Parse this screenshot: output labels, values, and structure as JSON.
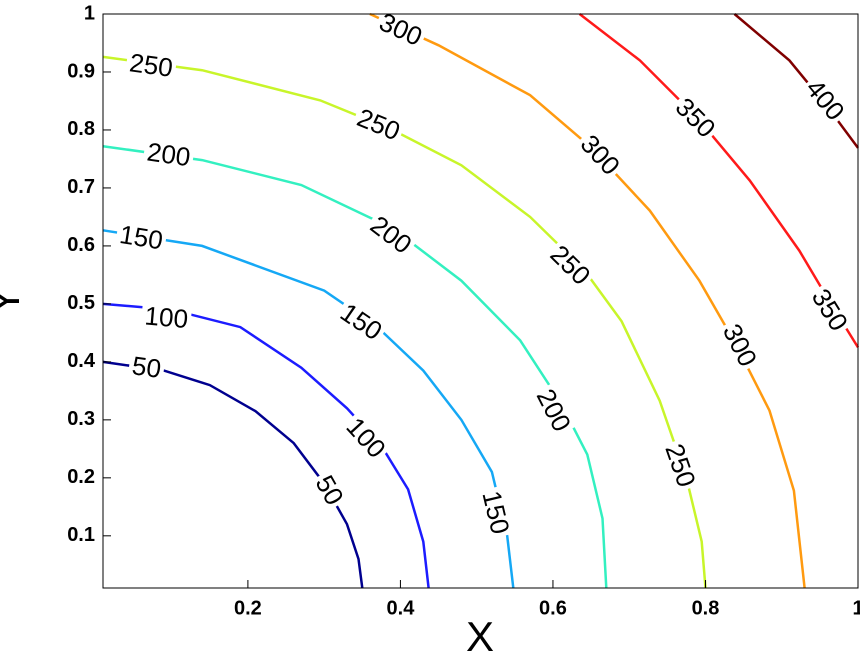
{
  "chart_data": {
    "type": "contour",
    "xlabel": "X",
    "ylabel": "Y",
    "xlim": [
      0.01,
      1
    ],
    "ylim": [
      0.01,
      1
    ],
    "xticks": [
      0.2,
      0.4,
      0.6,
      0.8,
      1
    ],
    "yticks": [
      0.1,
      0.2,
      0.3,
      0.4,
      0.5,
      0.6,
      0.7,
      0.8,
      0.9,
      1
    ],
    "series": [
      {
        "level": 50,
        "color": "#00008f",
        "x": [
          0.01,
          0.09,
          0.15,
          0.21,
          0.26,
          0.3,
          0.33,
          0.345,
          0.35
        ],
        "y": [
          0.4,
          0.385,
          0.36,
          0.315,
          0.26,
          0.19,
          0.12,
          0.06,
          0.01
        ],
        "label_x": [
          0.067,
          0.306
        ],
        "label_y": [
          0.389,
          0.178
        ]
      },
      {
        "level": 100,
        "color": "#1c1cff",
        "x": [
          0.01,
          0.1,
          0.19,
          0.27,
          0.33,
          0.375,
          0.41,
          0.43,
          0.437
        ],
        "y": [
          0.5,
          0.49,
          0.46,
          0.39,
          0.32,
          0.255,
          0.18,
          0.09,
          0.01
        ],
        "label_x": [
          0.093,
          0.354
        ],
        "label_y": [
          0.475,
          0.268
        ]
      },
      {
        "level": 150,
        "color": "#15a8f5",
        "x": [
          0.01,
          0.14,
          0.3,
          0.37,
          0.43,
          0.48,
          0.52,
          0.54,
          0.548
        ],
        "y": [
          0.627,
          0.6,
          0.523,
          0.46,
          0.385,
          0.3,
          0.21,
          0.1,
          0.01
        ],
        "label_x": [
          0.06,
          0.348,
          0.524
        ],
        "label_y": [
          0.613,
          0.468,
          0.14
        ]
      },
      {
        "level": 200,
        "color": "#33f0c0",
        "x": [
          0.01,
          0.14,
          0.27,
          0.39,
          0.48,
          0.557,
          0.61,
          0.645,
          0.665,
          0.67
        ],
        "y": [
          0.772,
          0.748,
          0.705,
          0.63,
          0.54,
          0.437,
          0.33,
          0.24,
          0.13,
          0.01
        ],
        "label_x": [
          0.096,
          0.387,
          0.6
        ],
        "label_y": [
          0.756,
          0.618,
          0.316
        ]
      },
      {
        "level": 250,
        "color": "#c8f52a",
        "x": [
          0.01,
          0.14,
          0.295,
          0.39,
          0.48,
          0.57,
          0.64,
          0.69,
          0.74,
          0.775,
          0.795,
          0.8
        ],
        "y": [
          0.926,
          0.903,
          0.851,
          0.8,
          0.739,
          0.65,
          0.56,
          0.47,
          0.333,
          0.2,
          0.09,
          0.01
        ],
        "label_x": [
          0.073,
          0.371,
          0.622,
          0.766
        ],
        "label_y": [
          0.91,
          0.808,
          0.566,
          0.221
        ]
      },
      {
        "level": 300,
        "color": "#ff9a10",
        "x": [
          0.36,
          0.45,
          0.57,
          0.65,
          0.727,
          0.792,
          0.84,
          0.884,
          0.916,
          0.93
        ],
        "y": [
          1,
          0.946,
          0.86,
          0.77,
          0.661,
          0.54,
          0.43,
          0.316,
          0.178,
          0.01
        ],
        "label_x": [
          0.4,
          0.661,
          0.844
        ],
        "label_y": [
          0.972,
          0.756,
          0.428
        ]
      },
      {
        "level": 350,
        "color": "#ff1a1a",
        "x": [
          0.635,
          0.714,
          0.79,
          0.858,
          0.923,
          0.96,
          1
        ],
        "y": [
          1,
          0.92,
          0.82,
          0.713,
          0.592,
          0.51,
          0.425
        ],
        "label_x": [
          0.786,
          0.962
        ],
        "label_y": [
          0.82,
          0.489
        ]
      },
      {
        "level": 400,
        "color": "#800000",
        "x": [
          0.838,
          0.91,
          0.96,
          1
        ],
        "y": [
          1,
          0.92,
          0.84,
          0.769
        ],
        "label_x": [
          0.956
        ],
        "label_y": [
          0.851
        ]
      }
    ]
  }
}
